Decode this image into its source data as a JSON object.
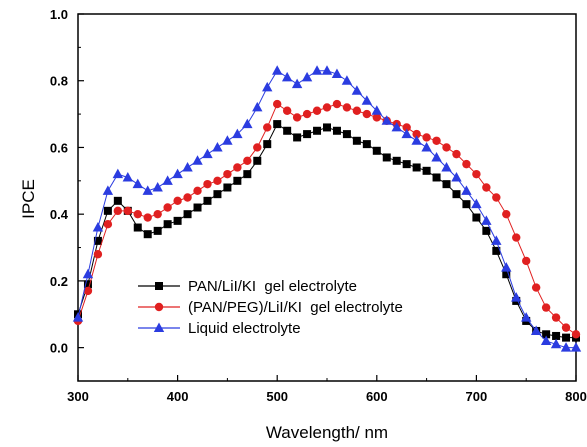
{
  "chart_data": {
    "type": "line",
    "title": "",
    "xlabel": "Wavelength/ nm",
    "ylabel": "IPCE",
    "xlim": [
      300,
      800
    ],
    "ylim": [
      -0.1,
      1.0
    ],
    "xticks": [
      300,
      400,
      500,
      600,
      700,
      800
    ],
    "xtick_labels": [
      "300",
      "400",
      "500",
      "600",
      "700",
      "800"
    ],
    "yticks": [
      0.0,
      0.2,
      0.4,
      0.6,
      0.8,
      1.0
    ],
    "ytick_labels": [
      "0.0",
      "0.2",
      "0.4",
      "0.6",
      "0.8",
      "1.0"
    ],
    "grid": false,
    "legend_position": "lower-left",
    "x": [
      300,
      310,
      320,
      330,
      340,
      350,
      360,
      370,
      380,
      390,
      400,
      410,
      420,
      430,
      440,
      450,
      460,
      470,
      480,
      490,
      500,
      510,
      520,
      530,
      540,
      550,
      560,
      570,
      580,
      590,
      600,
      610,
      620,
      630,
      640,
      650,
      660,
      670,
      680,
      690,
      700,
      710,
      720,
      730,
      740,
      750,
      760,
      770,
      780,
      790,
      800
    ],
    "series": [
      {
        "name": "PAN/LiI/KI  gel electrolyte",
        "color": "#000000",
        "marker": "square",
        "values": [
          0.1,
          0.19,
          0.32,
          0.41,
          0.44,
          0.41,
          0.36,
          0.34,
          0.35,
          0.37,
          0.38,
          0.4,
          0.42,
          0.44,
          0.46,
          0.48,
          0.5,
          0.52,
          0.56,
          0.61,
          0.67,
          0.65,
          0.63,
          0.64,
          0.65,
          0.66,
          0.65,
          0.64,
          0.62,
          0.61,
          0.59,
          0.57,
          0.56,
          0.55,
          0.54,
          0.53,
          0.51,
          0.49,
          0.46,
          0.43,
          0.39,
          0.35,
          0.29,
          0.22,
          0.14,
          0.08,
          0.05,
          0.04,
          0.035,
          0.03,
          0.03
        ]
      },
      {
        "name": "(PAN/PEG)/LiI/KI  gel electrolyte",
        "color": "#e02020",
        "marker": "circle",
        "values": [
          0.08,
          0.17,
          0.28,
          0.37,
          0.41,
          0.41,
          0.4,
          0.39,
          0.4,
          0.42,
          0.44,
          0.45,
          0.47,
          0.49,
          0.5,
          0.52,
          0.54,
          0.56,
          0.6,
          0.66,
          0.73,
          0.71,
          0.69,
          0.7,
          0.71,
          0.72,
          0.73,
          0.72,
          0.71,
          0.7,
          0.69,
          0.68,
          0.67,
          0.66,
          0.64,
          0.63,
          0.62,
          0.6,
          0.58,
          0.55,
          0.52,
          0.48,
          0.45,
          0.4,
          0.33,
          0.26,
          0.18,
          0.12,
          0.09,
          0.06,
          0.04
        ]
      },
      {
        "name": "Liquid electrolyte",
        "color": "#2b3ce0",
        "marker": "triangle",
        "values": [
          0.09,
          0.22,
          0.36,
          0.47,
          0.52,
          0.51,
          0.49,
          0.47,
          0.48,
          0.5,
          0.52,
          0.54,
          0.56,
          0.58,
          0.6,
          0.62,
          0.64,
          0.67,
          0.72,
          0.78,
          0.83,
          0.81,
          0.79,
          0.81,
          0.83,
          0.83,
          0.82,
          0.8,
          0.77,
          0.74,
          0.71,
          0.68,
          0.66,
          0.64,
          0.62,
          0.6,
          0.57,
          0.54,
          0.51,
          0.47,
          0.43,
          0.38,
          0.32,
          0.24,
          0.15,
          0.09,
          0.05,
          0.02,
          0.01,
          0.0,
          0.0
        ]
      }
    ]
  }
}
